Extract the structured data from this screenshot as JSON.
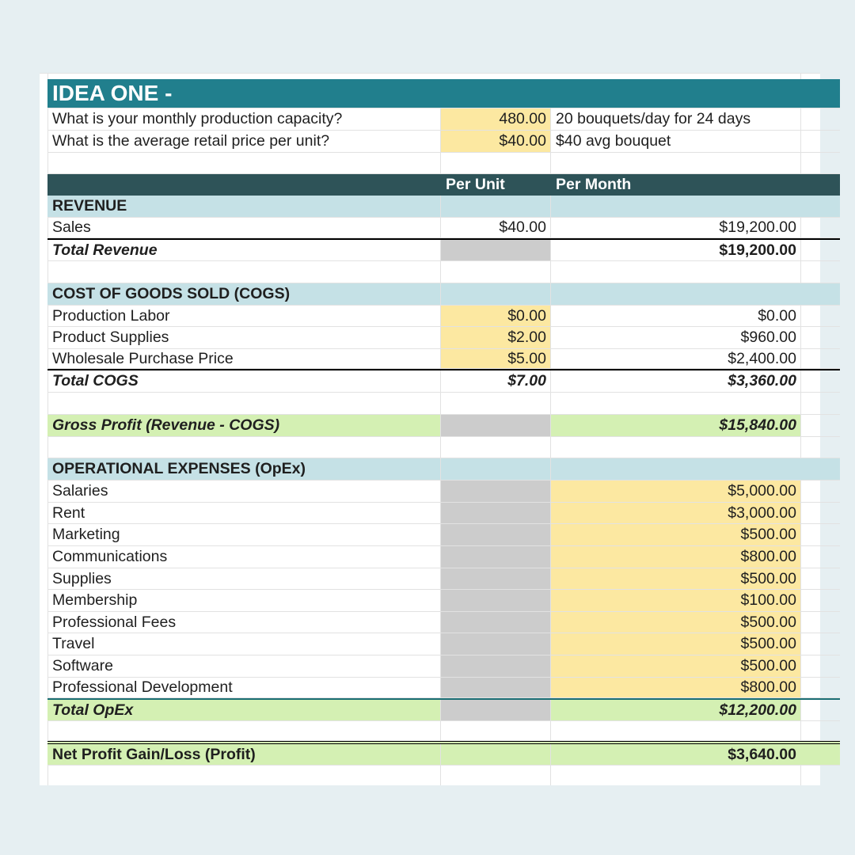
{
  "title": "IDEA ONE -",
  "inputs": [
    {
      "question": "What is your monthly production capacity?",
      "value": "480.00",
      "note": "20 bouquets/day for 24 days"
    },
    {
      "question": "What is the average retail price per unit?",
      "value": "$40.00",
      "note": "$40 avg bouquet"
    }
  ],
  "headers": {
    "per_unit": "Per Unit",
    "per_month": "Per Month"
  },
  "revenue": {
    "heading": "REVENUE",
    "rows": [
      {
        "label": "Sales",
        "per_unit": "$40.00",
        "per_month": "$19,200.00"
      }
    ],
    "total_label": "Total Revenue",
    "total_month": "$19,200.00"
  },
  "cogs": {
    "heading": "COST OF GOODS SOLD (COGS)",
    "rows": [
      {
        "label": "Production Labor",
        "per_unit": "$0.00",
        "per_month": "$0.00"
      },
      {
        "label": "Product Supplies",
        "per_unit": "$2.00",
        "per_month": "$960.00"
      },
      {
        "label": "Wholesale Purchase Price",
        "per_unit": "$5.00",
        "per_month": "$2,400.00"
      }
    ],
    "total_label": "Total COGS",
    "total_unit": "$7.00",
    "total_month": "$3,360.00"
  },
  "gross_profit": {
    "label": "Gross Profit (Revenue - COGS)",
    "per_month": "$15,840.00"
  },
  "opex": {
    "heading": "OPERATIONAL EXPENSES (OpEx)",
    "rows": [
      {
        "label": "Salaries",
        "per_month": "$5,000.00"
      },
      {
        "label": "Rent",
        "per_month": "$3,000.00"
      },
      {
        "label": "Marketing",
        "per_month": "$500.00"
      },
      {
        "label": "Communications",
        "per_month": "$800.00"
      },
      {
        "label": "Supplies",
        "per_month": "$500.00"
      },
      {
        "label": "Membership",
        "per_month": "$100.00"
      },
      {
        "label": "Professional Fees",
        "per_month": "$500.00"
      },
      {
        "label": "Travel",
        "per_month": "$500.00"
      },
      {
        "label": "Software",
        "per_month": "$500.00"
      },
      {
        "label": "Professional Development",
        "per_month": "$800.00"
      }
    ],
    "total_label": "Total OpEx",
    "total_month": "$12,200.00"
  },
  "net_profit": {
    "label": "Net Profit Gain/Loss (Profit)",
    "per_month": "$3,640.00"
  },
  "colors": {
    "title_bar": "#217f8d",
    "header_bar": "#2e5358",
    "section_heading": "#c5e1e6",
    "input_cell": "#fce8a1",
    "total_cell": "#d4f0b3",
    "disabled_cell": "#cccccc",
    "page_background": "#e6eff2"
  }
}
